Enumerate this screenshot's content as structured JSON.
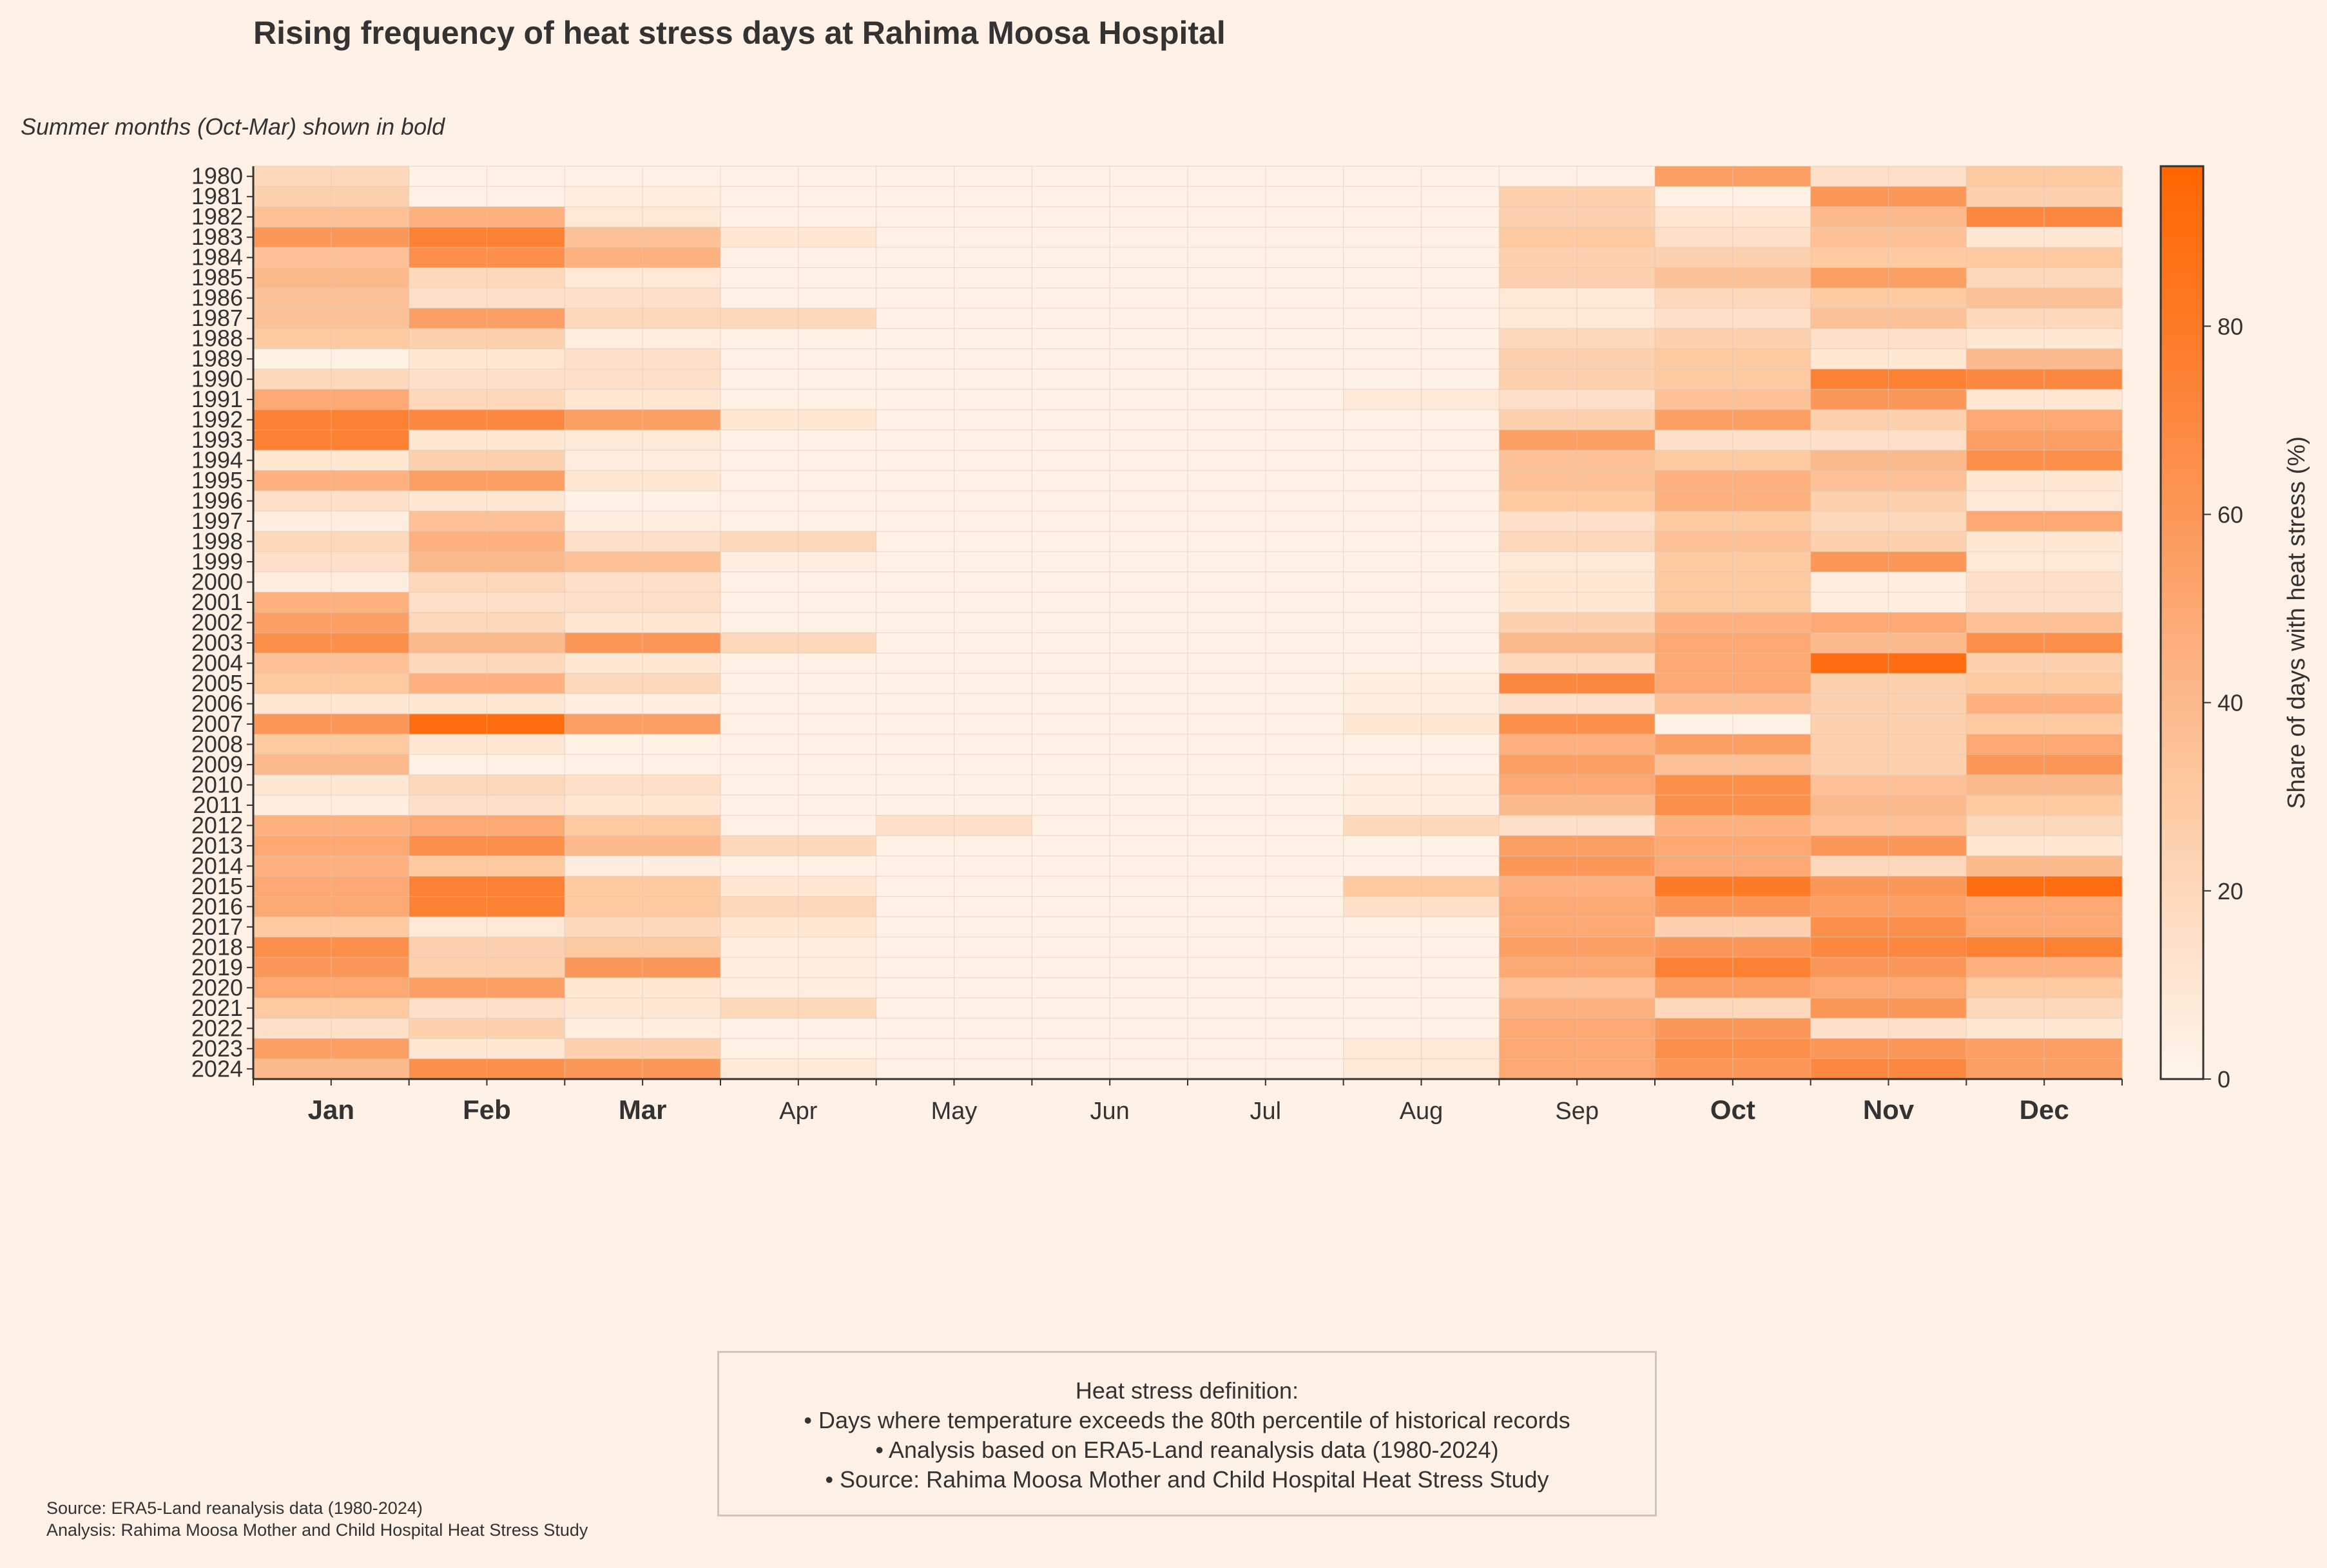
{
  "title": "Rising frequency of heat stress days at Rahima Moosa Hospital",
  "subtitle": "Summer months (Oct-Mar) shown in bold",
  "info_box": {
    "lines": [
      "Heat stress definition:",
      "• Days where temperature exceeds the 80th percentile of historical records",
      "• Analysis based on ERA5-Land reanalysis data (1980-2024)",
      "• Source: Rahima Moosa Mother and Child Hospital Heat Stress Study"
    ]
  },
  "source_lines": [
    "Source: ERA5-Land reanalysis data (1980-2024)",
    "Analysis: Rahima Moosa Mother and Child Hospital Heat Stress Study"
  ],
  "colors": {
    "background": "#fff1e6",
    "low": "#fff5eb",
    "high": "#ff6600",
    "text": "#333333"
  },
  "chart_data": {
    "type": "heatmap",
    "x_categories": [
      "Jan",
      "Feb",
      "Mar",
      "Apr",
      "May",
      "Jun",
      "Jul",
      "Aug",
      "Sep",
      "Oct",
      "Nov",
      "Dec"
    ],
    "bold_months": [
      "Jan",
      "Feb",
      "Mar",
      "Oct",
      "Nov",
      "Dec"
    ],
    "y_categories": [
      "1980",
      "1981",
      "1982",
      "1983",
      "1984",
      "1985",
      "1986",
      "1987",
      "1988",
      "1989",
      "1990",
      "1991",
      "1992",
      "1993",
      "1994",
      "1995",
      "1996",
      "1997",
      "1998",
      "1999",
      "2000",
      "2001",
      "2002",
      "2003",
      "2004",
      "2005",
      "2006",
      "2007",
      "2008",
      "2009",
      "2010",
      "2011",
      "2012",
      "2013",
      "2014",
      "2015",
      "2016",
      "2017",
      "2018",
      "2019",
      "2020",
      "2021",
      "2022",
      "2023",
      "2024"
    ],
    "colorbar": {
      "label": "Share of days with heat stress (%)",
      "range": [
        0,
        97
      ],
      "ticks": [
        0,
        20,
        40,
        60,
        80
      ]
    },
    "values": [
      [
        20,
        3,
        3,
        3,
        3,
        3,
        3,
        3,
        3,
        55,
        15,
        30
      ],
      [
        25,
        3,
        5,
        3,
        3,
        3,
        3,
        3,
        25,
        3,
        60,
        25
      ],
      [
        35,
        45,
        8,
        3,
        3,
        3,
        3,
        3,
        25,
        10,
        40,
        70
      ],
      [
        60,
        75,
        35,
        10,
        3,
        3,
        3,
        3,
        30,
        15,
        35,
        10
      ],
      [
        35,
        65,
        45,
        3,
        3,
        3,
        3,
        3,
        25,
        25,
        30,
        30
      ],
      [
        40,
        20,
        8,
        3,
        3,
        3,
        3,
        3,
        25,
        35,
        55,
        20
      ],
      [
        35,
        15,
        15,
        3,
        3,
        3,
        3,
        3,
        8,
        20,
        30,
        35
      ],
      [
        35,
        55,
        20,
        20,
        3,
        3,
        3,
        3,
        8,
        15,
        35,
        20
      ],
      [
        30,
        25,
        5,
        3,
        3,
        3,
        3,
        3,
        20,
        25,
        15,
        10
      ],
      [
        3,
        10,
        15,
        3,
        3,
        3,
        3,
        3,
        25,
        30,
        10,
        40
      ],
      [
        20,
        15,
        15,
        3,
        3,
        3,
        3,
        3,
        25,
        30,
        75,
        70
      ],
      [
        50,
        20,
        10,
        3,
        3,
        3,
        3,
        8,
        15,
        35,
        60,
        10
      ],
      [
        75,
        70,
        55,
        10,
        3,
        3,
        3,
        3,
        25,
        55,
        25,
        50
      ],
      [
        75,
        10,
        8,
        3,
        3,
        3,
        3,
        3,
        55,
        15,
        15,
        55
      ],
      [
        10,
        25,
        5,
        3,
        3,
        3,
        3,
        3,
        35,
        30,
        40,
        65
      ],
      [
        45,
        55,
        10,
        3,
        3,
        3,
        3,
        3,
        35,
        45,
        35,
        10
      ],
      [
        15,
        10,
        3,
        3,
        3,
        3,
        3,
        3,
        30,
        45,
        25,
        8
      ],
      [
        5,
        35,
        5,
        3,
        3,
        3,
        3,
        3,
        15,
        30,
        20,
        50
      ],
      [
        20,
        45,
        15,
        20,
        3,
        3,
        3,
        3,
        20,
        35,
        25,
        10
      ],
      [
        15,
        40,
        35,
        5,
        3,
        3,
        3,
        3,
        8,
        30,
        60,
        8
      ],
      [
        5,
        20,
        15,
        3,
        3,
        3,
        3,
        3,
        10,
        30,
        5,
        15
      ],
      [
        45,
        15,
        15,
        3,
        3,
        3,
        3,
        3,
        10,
        30,
        5,
        15
      ],
      [
        55,
        20,
        10,
        3,
        3,
        3,
        3,
        3,
        25,
        45,
        50,
        35
      ],
      [
        65,
        40,
        60,
        20,
        3,
        3,
        3,
        3,
        40,
        50,
        40,
        65
      ],
      [
        35,
        20,
        10,
        3,
        3,
        3,
        3,
        3,
        20,
        50,
        90,
        25
      ],
      [
        30,
        45,
        20,
        3,
        3,
        3,
        3,
        5,
        70,
        50,
        25,
        30
      ],
      [
        10,
        10,
        5,
        3,
        3,
        3,
        3,
        5,
        15,
        35,
        25,
        45
      ],
      [
        60,
        90,
        55,
        3,
        3,
        3,
        3,
        10,
        65,
        3,
        25,
        30
      ],
      [
        30,
        10,
        3,
        3,
        3,
        3,
        3,
        3,
        45,
        55,
        25,
        50
      ],
      [
        40,
        3,
        3,
        3,
        3,
        3,
        3,
        3,
        55,
        35,
        25,
        60
      ],
      [
        10,
        20,
        15,
        3,
        3,
        3,
        3,
        5,
        50,
        65,
        35,
        40
      ],
      [
        5,
        15,
        10,
        3,
        3,
        3,
        3,
        5,
        40,
        65,
        40,
        30
      ],
      [
        45,
        50,
        30,
        3,
        15,
        3,
        3,
        20,
        15,
        45,
        35,
        20
      ],
      [
        50,
        65,
        40,
        20,
        3,
        3,
        3,
        3,
        55,
        50,
        60,
        10
      ],
      [
        45,
        30,
        5,
        3,
        3,
        3,
        3,
        3,
        60,
        50,
        20,
        40
      ],
      [
        50,
        75,
        30,
        10,
        3,
        3,
        3,
        30,
        45,
        80,
        60,
        90
      ],
      [
        50,
        75,
        30,
        20,
        3,
        3,
        3,
        15,
        50,
        60,
        55,
        50
      ],
      [
        30,
        8,
        20,
        10,
        3,
        3,
        3,
        3,
        50,
        25,
        65,
        50
      ],
      [
        65,
        25,
        30,
        5,
        3,
        3,
        3,
        3,
        55,
        60,
        70,
        75
      ],
      [
        60,
        25,
        60,
        5,
        3,
        3,
        3,
        3,
        50,
        75,
        60,
        45
      ],
      [
        50,
        55,
        10,
        5,
        3,
        3,
        3,
        3,
        35,
        55,
        50,
        30
      ],
      [
        30,
        15,
        10,
        20,
        3,
        3,
        3,
        3,
        45,
        20,
        60,
        20
      ],
      [
        15,
        25,
        5,
        3,
        3,
        3,
        3,
        3,
        50,
        60,
        15,
        10
      ],
      [
        55,
        10,
        25,
        3,
        3,
        3,
        3,
        8,
        50,
        65,
        60,
        55
      ],
      [
        40,
        65,
        60,
        8,
        3,
        3,
        3,
        8,
        50,
        60,
        70,
        55
      ]
    ]
  }
}
